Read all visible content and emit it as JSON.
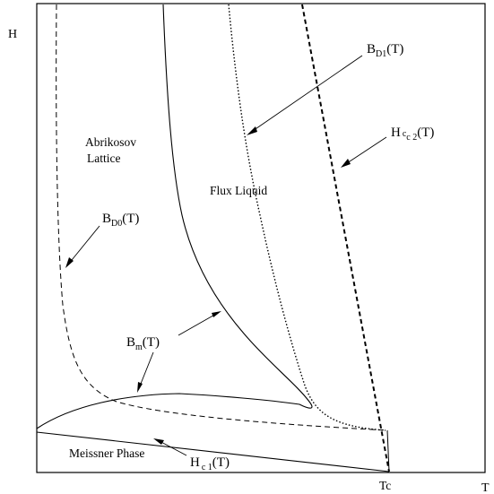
{
  "axes": {
    "y_label": "H",
    "x_label": "T",
    "tc_label": "Tc"
  },
  "regions": {
    "abrikosov_line1": "Abrikosov",
    "abrikosov_line2": "Lattice",
    "flux_liquid": "Flux Liquid",
    "meissner": "Meissner Phase"
  },
  "curve_labels": {
    "bd1": {
      "main": "B",
      "sub": "D1",
      "arg": "(T)"
    },
    "hc2": {
      "main": "H",
      "sub": "c 2",
      "arg": "(T)",
      "pre": "c"
    },
    "bd0": {
      "main": "B",
      "sub": "D0",
      "arg": "(T)"
    },
    "bm": {
      "main": "B",
      "sub": "m",
      "arg": "(T)"
    },
    "hc1": {
      "main": "H",
      "sub": "c 1",
      "arg": "(T)"
    }
  }
}
